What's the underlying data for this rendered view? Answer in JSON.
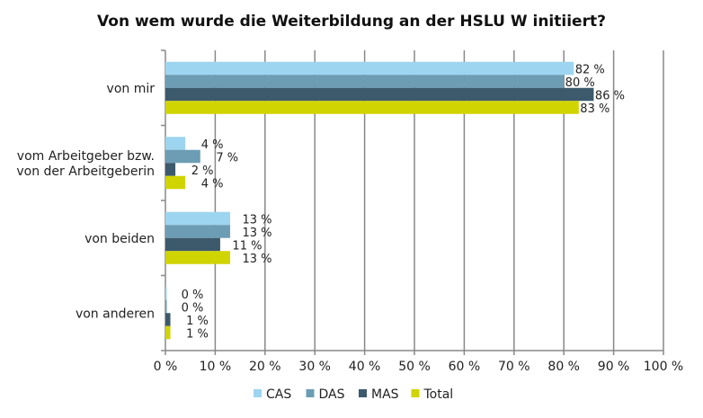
{
  "chart_data": {
    "type": "bar",
    "orientation": "horizontal",
    "title": "Von wem wurde die Weiterbildung an der HSLU W initiiert?",
    "categories": [
      [
        "von mir"
      ],
      [
        "vom Arbeitgeber bzw.",
        "von der Arbeitgeberin"
      ],
      [
        "von beiden"
      ],
      [
        "von anderen"
      ]
    ],
    "series": [
      {
        "name": "CAS",
        "color": "#9dd5f0",
        "values": [
          82,
          4,
          13,
          0
        ],
        "labels": [
          "82 %",
          "4 %",
          "13 %",
          "0 %"
        ]
      },
      {
        "name": "DAS",
        "color": "#6c9db5",
        "values": [
          80,
          7,
          13,
          0
        ],
        "labels": [
          "80 %",
          "7 %",
          "13 %",
          "0 %"
        ]
      },
      {
        "name": "MAS",
        "color": "#3d5a6c",
        "values": [
          86,
          2,
          11,
          1
        ],
        "labels": [
          "86 %",
          "2 %",
          "11 %",
          "1 %"
        ]
      },
      {
        "name": "Total",
        "color": "#d0d400",
        "values": [
          83,
          4,
          13,
          1
        ],
        "labels": [
          "83 %",
          "4 %",
          "13 %",
          "1 %"
        ]
      }
    ],
    "xlim": [
      0,
      100
    ],
    "xticks": [
      "0 %",
      "10 %",
      "20 %",
      "30 %",
      "40 %",
      "50 %",
      "60 %",
      "70 %",
      "80 %",
      "90 %",
      "100 %"
    ],
    "grid": true,
    "legend": "bottom"
  }
}
